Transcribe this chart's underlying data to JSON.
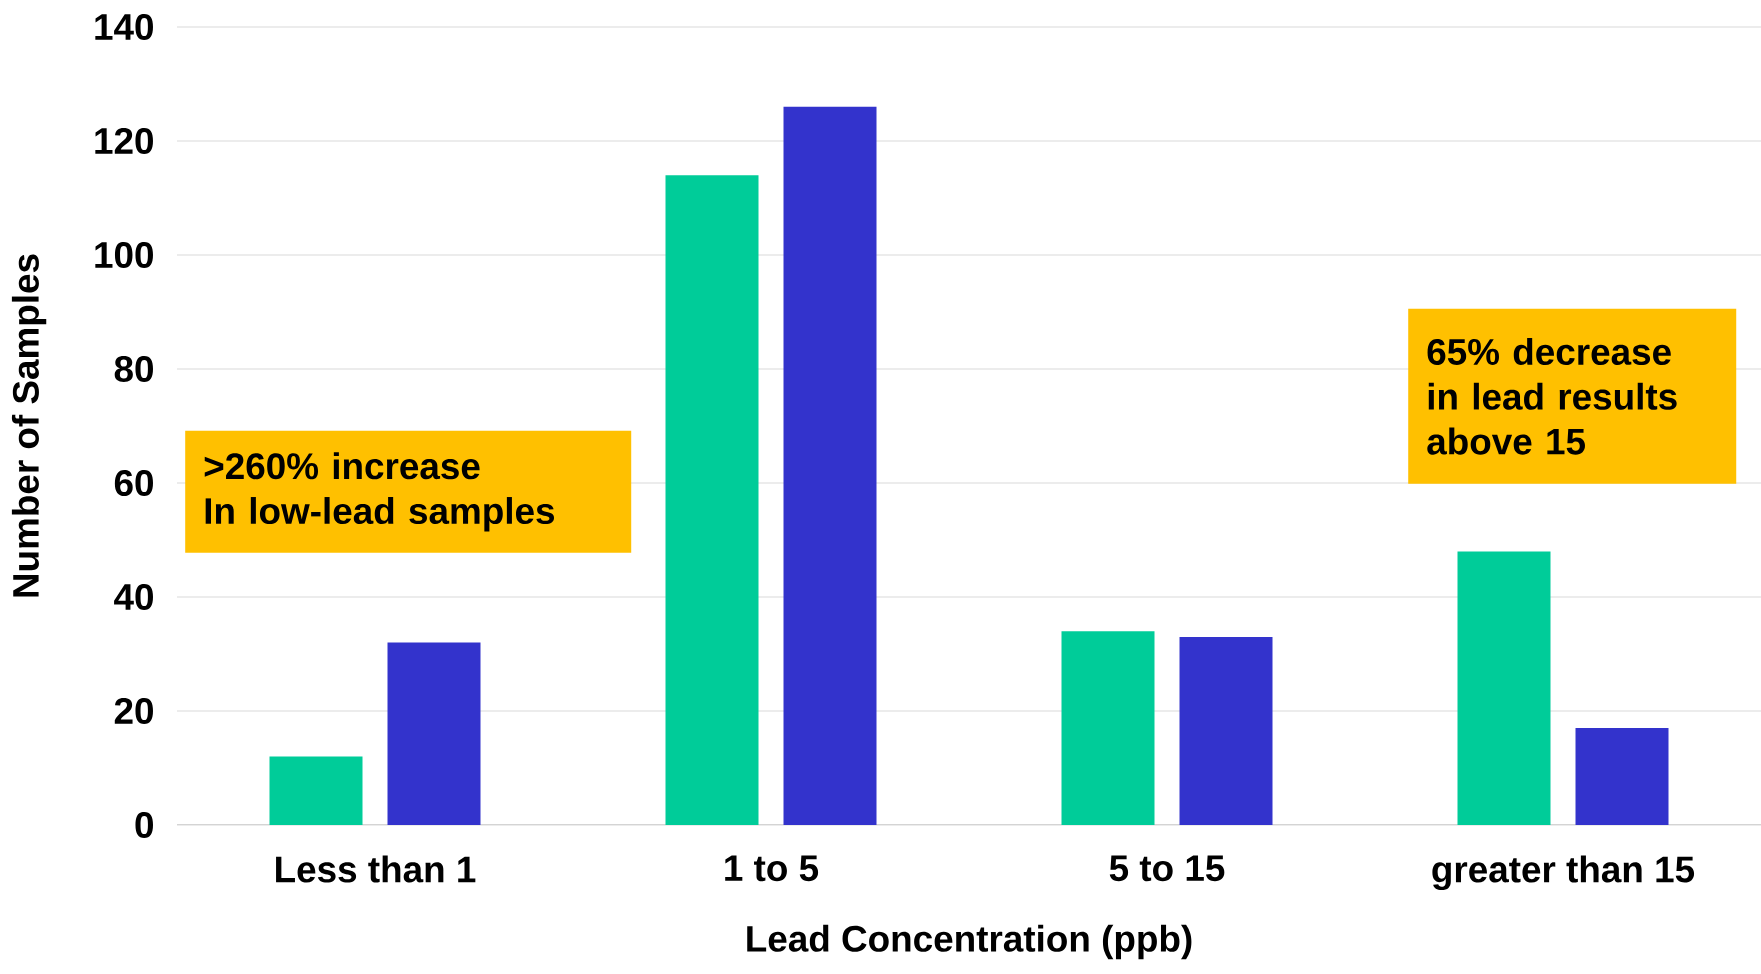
{
  "chart_data": {
    "type": "bar",
    "xlabel": "Lead Concentration (ppb)",
    "ylabel": "Number of Samples",
    "categories": [
      "Less than 1",
      "1 to 5",
      "5 to 15",
      "greater than 15"
    ],
    "series": [
      {
        "color": "#00cc99",
        "values": [
          12,
          114,
          34,
          48
        ]
      },
      {
        "color": "#3333cc",
        "values": [
          32,
          126,
          33,
          17
        ]
      }
    ],
    "ylim": [
      0,
      140
    ],
    "yticks": [
      0,
      20,
      40,
      60,
      80,
      100,
      120,
      140
    ],
    "grid": "y",
    "annotations": [
      ">260% increase",
      "In low-lead samples",
      "65% decrease in lead results above 15"
    ]
  }
}
